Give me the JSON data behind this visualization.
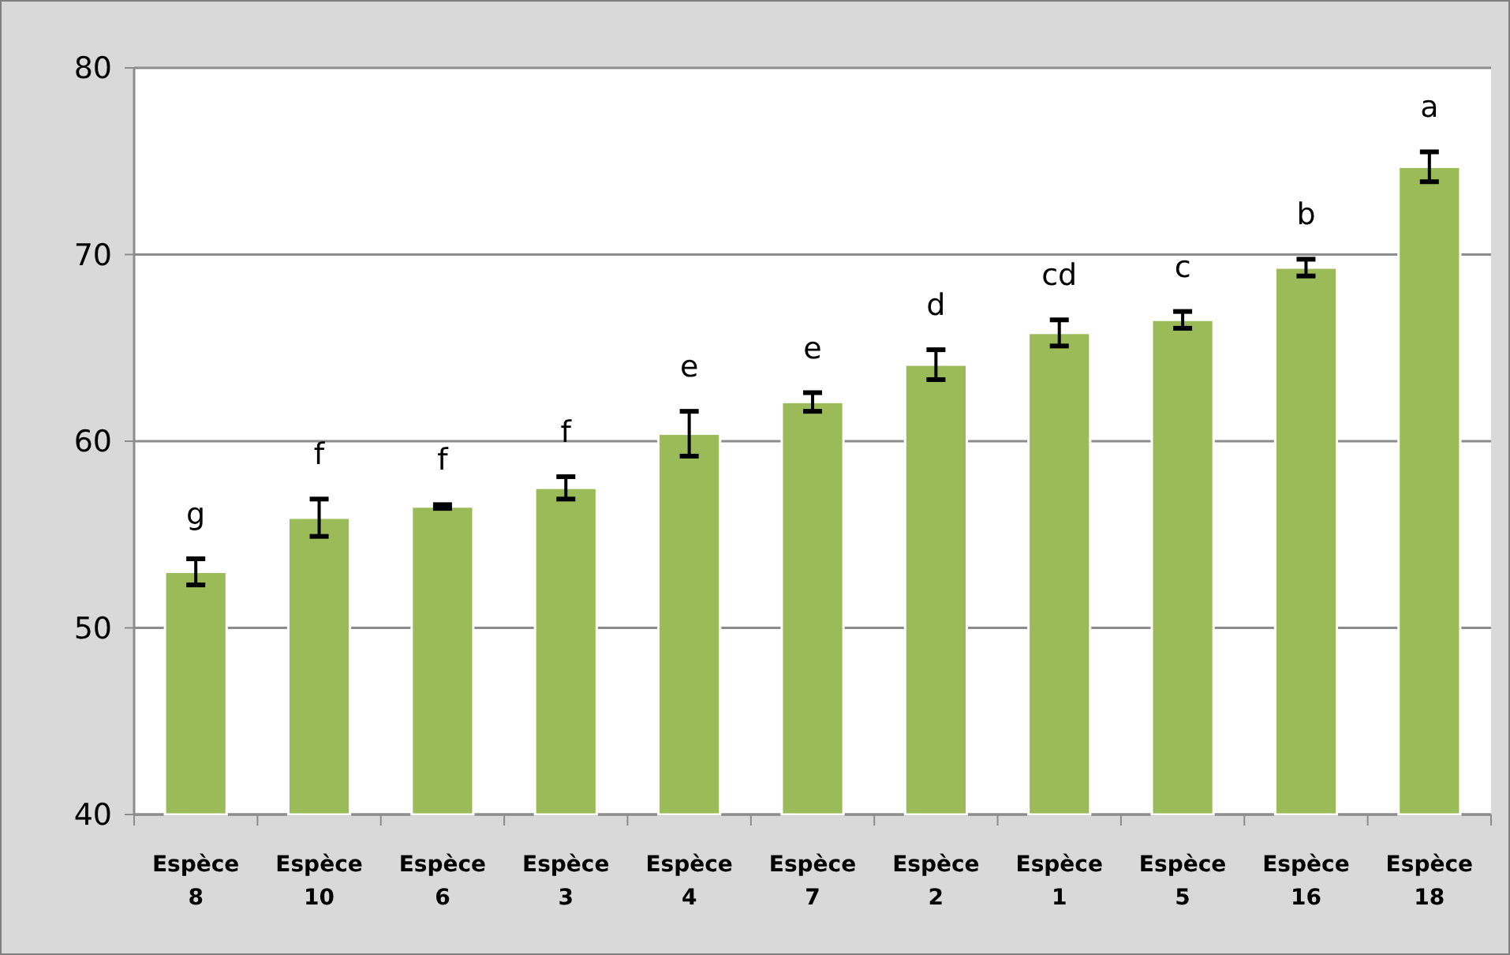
{
  "chart_data": {
    "type": "bar",
    "categories": [
      "Espèce 8",
      "Espèce 10",
      "Espèce 6",
      "Espèce 3",
      "Espèce 4",
      "Espèce 7",
      "Espèce 2",
      "Espèce 1",
      "Espèce 5",
      "Espèce 16",
      "Espèce 18"
    ],
    "values": [
      53.0,
      55.9,
      56.5,
      57.5,
      60.4,
      62.1,
      64.1,
      65.8,
      66.5,
      69.3,
      74.7
    ],
    "errors": [
      0.7,
      1.0,
      0.1,
      0.6,
      1.2,
      0.5,
      0.8,
      0.7,
      0.45,
      0.45,
      0.8
    ],
    "color": "#9bbb59",
    "ylim": [
      40,
      80
    ],
    "yticks": [
      40,
      50,
      60,
      70,
      80
    ],
    "grid": "y",
    "annotations": [
      "g",
      "f",
      "f",
      "f",
      "e",
      "e",
      "d",
      "cd",
      "c",
      "b",
      "a"
    ]
  }
}
